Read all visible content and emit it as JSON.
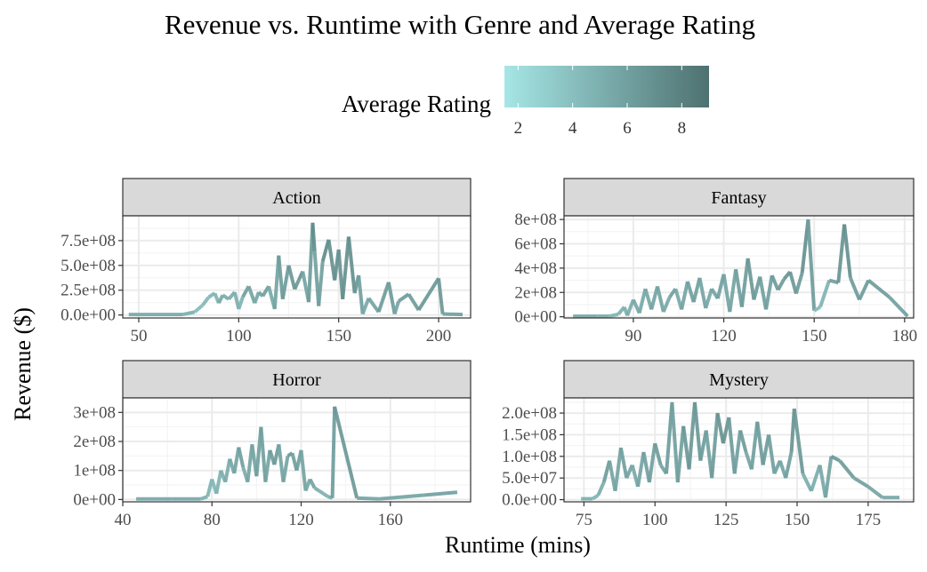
{
  "chart_data": {
    "type": "line",
    "title": "Revenue vs. Runtime with Genre and Average Rating",
    "xlabel": "Runtime (mins)",
    "ylabel": "Revenue ($)",
    "legend": {
      "title": "Average Rating",
      "placement": "top",
      "range": [
        1.5,
        9
      ],
      "ticks": [
        "2",
        "4",
        "6",
        "8"
      ],
      "low_color": "#a6e6e6",
      "high_color": "#4e7170"
    },
    "grid": true,
    "facets": [
      {
        "name": "Action",
        "xlim": [
          42,
          216
        ],
        "ylim": [
          -30000000,
          1000000000
        ],
        "xticks": [
          50,
          100,
          150,
          200
        ],
        "yticks": [
          0,
          250000000,
          500000000,
          750000000
        ],
        "ytick_labels": [
          "0.0e+00",
          "2.5e+08",
          "5.0e+08",
          "7.5e+08"
        ],
        "x": [
          45,
          60,
          72,
          78,
          82,
          85,
          88,
          90,
          92,
          95,
          98,
          100,
          102,
          105,
          108,
          110,
          112,
          115,
          118,
          120,
          122,
          125,
          128,
          130,
          132,
          135,
          137,
          138,
          140,
          142,
          145,
          148,
          150,
          152,
          155,
          158,
          160,
          162,
          165,
          170,
          175,
          178,
          180,
          185,
          190,
          200,
          202,
          212
        ],
        "y": [
          5000000,
          5000000,
          5000000,
          30000000,
          100000000,
          180000000,
          220000000,
          120000000,
          200000000,
          160000000,
          230000000,
          60000000,
          180000000,
          290000000,
          120000000,
          230000000,
          190000000,
          290000000,
          60000000,
          600000000,
          160000000,
          500000000,
          260000000,
          350000000,
          440000000,
          130000000,
          930000000,
          640000000,
          90000000,
          540000000,
          760000000,
          350000000,
          660000000,
          160000000,
          790000000,
          220000000,
          400000000,
          10000000,
          170000000,
          30000000,
          330000000,
          10000000,
          140000000,
          210000000,
          50000000,
          370000000,
          10000000,
          5000000
        ],
        "ratings": [
          5.5,
          5.5,
          5.5,
          4.5,
          4,
          5,
          4.5,
          5,
          6,
          4.5,
          6,
          4,
          5.5,
          6.5,
          5,
          6,
          5.5,
          6.5,
          4.5,
          7,
          5.5,
          7,
          6,
          7,
          6.5,
          5,
          7.5,
          7,
          5,
          7,
          7.5,
          6.5,
          7.5,
          6,
          8,
          6,
          7,
          5,
          6,
          5.5,
          7,
          5.5,
          6,
          6.5,
          6,
          7,
          6,
          6
        ]
      },
      {
        "name": "Fantasy",
        "xlim": [
          67,
          183
        ],
        "ylim": [
          -10000000,
          830000000
        ],
        "xticks": [
          90,
          120,
          150,
          180
        ],
        "yticks": [
          0,
          200000000,
          400000000,
          600000000,
          800000000
        ],
        "ytick_labels": [
          "0e+00",
          "2e+08",
          "4e+08",
          "6e+08",
          "8e+08"
        ],
        "x": [
          70,
          78,
          82,
          85,
          87,
          88,
          90,
          92,
          94,
          96,
          98,
          100,
          102,
          104,
          106,
          108,
          110,
          112,
          114,
          116,
          118,
          120,
          122,
          124,
          126,
          128,
          130,
          132,
          134,
          136,
          138,
          140,
          142,
          144,
          146,
          148,
          150,
          152,
          155,
          158,
          160,
          162,
          165,
          168,
          175,
          181
        ],
        "y": [
          5000000,
          5000000,
          5000000,
          20000000,
          80000000,
          10000000,
          140000000,
          30000000,
          230000000,
          60000000,
          250000000,
          40000000,
          160000000,
          230000000,
          60000000,
          290000000,
          120000000,
          320000000,
          70000000,
          230000000,
          150000000,
          350000000,
          40000000,
          390000000,
          80000000,
          480000000,
          140000000,
          330000000,
          60000000,
          340000000,
          220000000,
          310000000,
          370000000,
          190000000,
          360000000,
          800000000,
          50000000,
          80000000,
          300000000,
          280000000,
          760000000,
          320000000,
          140000000,
          300000000,
          160000000,
          5000000
        ],
        "ratings": [
          5.5,
          5.5,
          5,
          4.5,
          5.5,
          4.5,
          6,
          5,
          6,
          5,
          6.5,
          5,
          6,
          6,
          5,
          6.5,
          5.5,
          6.5,
          5,
          6,
          5.5,
          6.5,
          5,
          6.5,
          5.5,
          7,
          6,
          6.5,
          5.5,
          6.5,
          6,
          6.5,
          7,
          6,
          6.5,
          7.5,
          5,
          3.5,
          6,
          6,
          7.5,
          6.5,
          6,
          6.5,
          6,
          6
        ]
      },
      {
        "name": "Horror",
        "xlim": [
          40,
          196
        ],
        "ylim": [
          -8000000,
          350000000
        ],
        "xticks": [
          40,
          80,
          120,
          160
        ],
        "yticks": [
          0,
          100000000,
          200000000,
          300000000
        ],
        "ytick_labels": [
          "0e+00",
          "1e+08",
          "2e+08",
          "3e+08"
        ],
        "x": [
          46,
          62,
          75,
          78,
          80,
          82,
          84,
          86,
          88,
          90,
          92,
          94,
          96,
          98,
          100,
          102,
          104,
          106,
          108,
          110,
          112,
          114,
          116,
          118,
          120,
          122,
          124,
          126,
          128,
          130,
          132,
          134,
          135,
          145,
          155,
          175,
          190
        ],
        "y": [
          2000000,
          2000000,
          2000000,
          10000000,
          70000000,
          20000000,
          100000000,
          60000000,
          140000000,
          90000000,
          180000000,
          110000000,
          60000000,
          190000000,
          80000000,
          250000000,
          60000000,
          170000000,
          120000000,
          190000000,
          60000000,
          150000000,
          160000000,
          100000000,
          170000000,
          30000000,
          70000000,
          40000000,
          30000000,
          20000000,
          10000000,
          5000000,
          320000000,
          5000000,
          2000000,
          15000000,
          25000000
        ],
        "ratings": [
          5.5,
          5.5,
          5.5,
          4.5,
          5,
          4,
          5.5,
          4.5,
          6,
          5,
          6.5,
          5.5,
          5,
          6.5,
          5,
          7,
          5,
          6.5,
          6,
          6.5,
          5,
          6.5,
          6.5,
          5.5,
          6.5,
          5,
          6,
          5.5,
          5,
          5,
          5,
          5.5,
          7,
          6,
          5.5,
          6,
          6
        ]
      },
      {
        "name": "Mystery",
        "xlim": [
          68,
          191
        ],
        "ylim": [
          -5000000,
          235000000
        ],
        "xticks": [
          75,
          100,
          125,
          150,
          175
        ],
        "yticks": [
          0,
          50000000,
          100000000,
          150000000,
          200000000
        ],
        "ytick_labels": [
          "0.0e+00",
          "5.0e+07",
          "1.0e+08",
          "1.5e+08",
          "2.0e+08"
        ],
        "x": [
          74,
          78,
          80,
          82,
          84,
          86,
          88,
          90,
          92,
          94,
          96,
          98,
          100,
          102,
          104,
          106,
          108,
          110,
          112,
          114,
          116,
          118,
          120,
          122,
          124,
          126,
          128,
          130,
          132,
          134,
          136,
          138,
          140,
          142,
          144,
          146,
          148,
          149,
          152,
          155,
          158,
          160,
          162,
          165,
          170,
          175,
          180,
          186
        ],
        "y": [
          2000000,
          2000000,
          10000000,
          40000000,
          90000000,
          20000000,
          120000000,
          50000000,
          80000000,
          30000000,
          110000000,
          40000000,
          130000000,
          80000000,
          60000000,
          225000000,
          40000000,
          170000000,
          70000000,
          225000000,
          90000000,
          160000000,
          50000000,
          200000000,
          130000000,
          190000000,
          60000000,
          160000000,
          110000000,
          70000000,
          180000000,
          80000000,
          150000000,
          60000000,
          90000000,
          50000000,
          110000000,
          210000000,
          60000000,
          20000000,
          80000000,
          5000000,
          100000000,
          90000000,
          50000000,
          30000000,
          5000000,
          5000000
        ],
        "ratings": [
          5,
          5,
          4.5,
          6,
          6.5,
          5,
          6.5,
          5.5,
          6,
          5,
          6.5,
          5.5,
          6.5,
          6,
          5.5,
          7,
          5,
          7,
          6,
          7,
          6,
          6.5,
          5.5,
          7,
          6.5,
          7,
          5.5,
          6.5,
          6,
          5.5,
          6.5,
          6,
          6.5,
          5.5,
          6,
          5.5,
          6.5,
          7,
          6,
          4.5,
          6,
          5,
          6.5,
          6.5,
          6,
          6,
          5.5,
          5.5
        ]
      }
    ]
  }
}
